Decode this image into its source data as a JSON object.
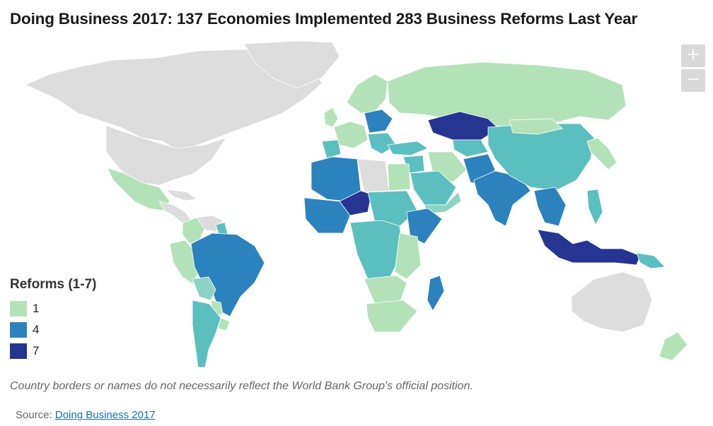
{
  "title": "Doing Business 2017: 137 Economies Implemented 283 Business Reforms Last Year",
  "zoom": {
    "in_label": "+",
    "out_label": "−"
  },
  "legend": {
    "title": "Reforms (1-7)",
    "items": [
      {
        "label": "1",
        "color": "#b3e2b9"
      },
      {
        "label": "4",
        "color": "#2c82bd"
      },
      {
        "label": "7",
        "color": "#263592"
      }
    ]
  },
  "colors": {
    "no_data": "#dddddd",
    "level_1": "#b3e2b9",
    "level_2": "#8bd3c2",
    "level_3": "#5bbfc0",
    "level_4": "#2c82bd",
    "level_7": "#263592",
    "border": "#ffffff"
  },
  "disclaimer": "Country borders or names do not necessarily reflect the World Bank Group's official position.",
  "source": {
    "prefix": "Source:",
    "link_text": "Doing Business 2017"
  }
}
